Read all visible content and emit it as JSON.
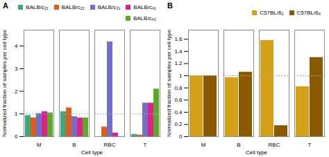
{
  "chart_data": [
    {
      "type": "bar",
      "title": "A",
      "xlabel": "Cell type",
      "ylabel": "Normalized fraction of samples per cell type",
      "categories": [
        "M",
        "B",
        "RBC",
        "T"
      ],
      "series": [
        {
          "name": "BALB/c₂₁",
          "color": "#3aaa7a",
          "values": [
            0.93,
            1.1,
            0.0,
            0.1
          ]
        },
        {
          "name": "BALB/c₂₂",
          "color": "#e05c1a",
          "values": [
            0.83,
            1.27,
            0.42,
            0.07
          ]
        },
        {
          "name": "BALB/c₃₁",
          "color": "#7070c8",
          "values": [
            1.02,
            0.88,
            4.18,
            1.48
          ]
        },
        {
          "name": "BALB/c₄₁",
          "color": "#e0208a",
          "values": [
            1.1,
            0.82,
            0.16,
            1.48
          ]
        },
        {
          "name": "BALB/c₄₂",
          "color": "#5aaa28",
          "values": [
            1.05,
            0.83,
            0.0,
            2.1
          ]
        }
      ],
      "ylim": [
        0,
        4.7
      ],
      "yticks": [
        0,
        1,
        2,
        3,
        4
      ],
      "hline": 1.0,
      "legend": "upper right"
    },
    {
      "type": "bar",
      "title": "B",
      "xlabel": "Cell type",
      "ylabel": "Normalized fraction of samples per cell type",
      "categories": [
        "M",
        "B",
        "RBC",
        "T"
      ],
      "series": [
        {
          "name": "C57BL/6₂",
          "color": "#d4a017",
          "values": [
            1.0,
            0.97,
            1.58,
            0.82
          ]
        },
        {
          "name": "C57BL/6₄",
          "color": "#8b5a00",
          "values": [
            1.0,
            1.06,
            0.18,
            1.3
          ]
        }
      ],
      "ylim": [
        0,
        1.75
      ],
      "yticks": [
        0,
        0.2,
        0.4,
        0.6,
        0.8,
        1.0,
        1.2,
        1.4,
        1.6
      ],
      "hline": 1.0,
      "legend": "upper right"
    }
  ]
}
